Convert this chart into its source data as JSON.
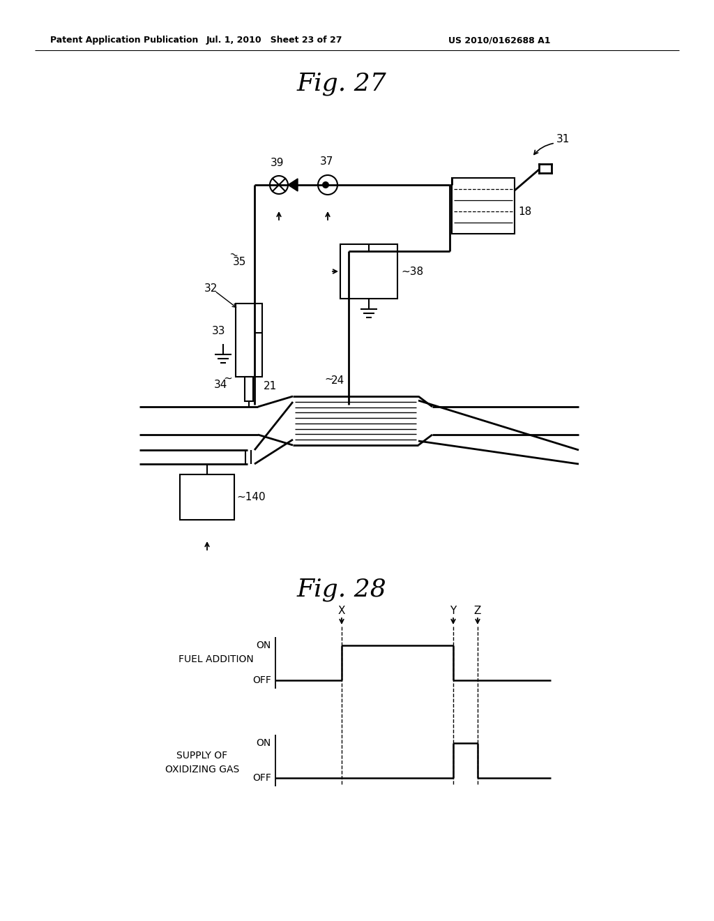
{
  "bg_color": "#ffffff",
  "text_color": "#000000",
  "line_color": "#000000",
  "header_left": "Patent Application Publication",
  "header_center": "Jul. 1, 2010   Sheet 23 of 27",
  "header_right": "US 2010/0162688 A1",
  "fig27_title": "Fig. 27",
  "fig28_title": "Fig. 28"
}
